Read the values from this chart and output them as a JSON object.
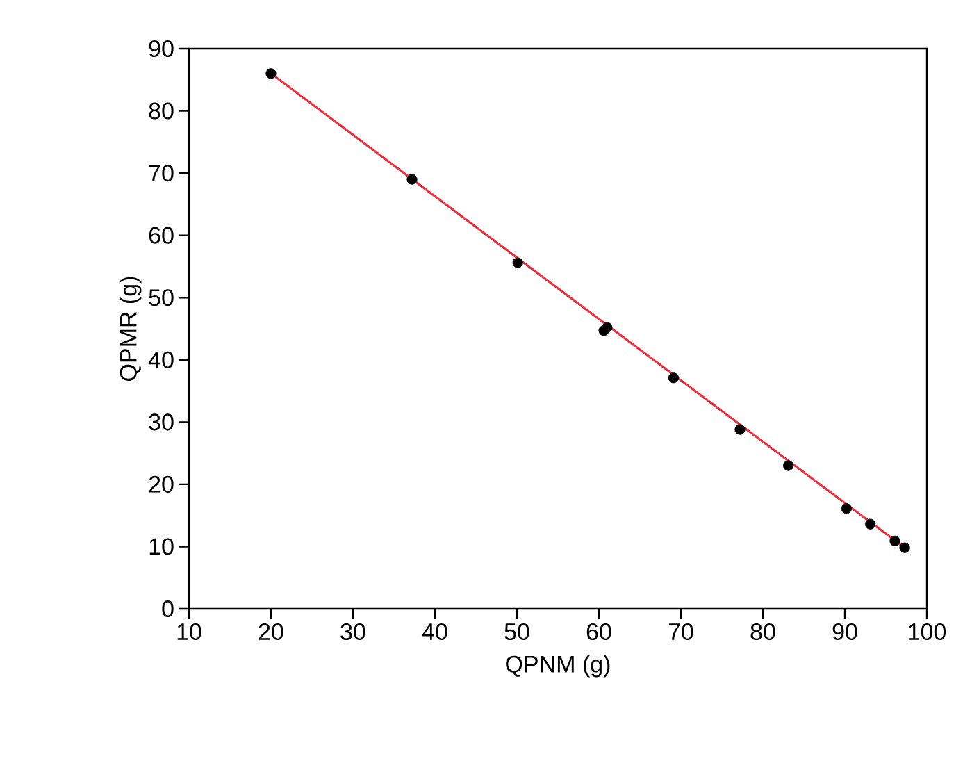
{
  "chart_data": {
    "type": "scatter",
    "xlabel": "QPNM (g)",
    "ylabel": "QPMR (g)",
    "xlim": [
      10,
      100
    ],
    "xticks": [
      10,
      20,
      30,
      40,
      50,
      60,
      70,
      80,
      90,
      100
    ],
    "ylim": [
      0,
      90
    ],
    "yticks": [
      0,
      10,
      20,
      30,
      40,
      50,
      60,
      70,
      80,
      90
    ],
    "marker": "circle",
    "series": [
      {
        "color": "#000000",
        "x": [
          20.0,
          37.2,
          50.1,
          60.6,
          61.0,
          69.1,
          77.2,
          83.1,
          90.2,
          93.1,
          96.1,
          97.3
        ],
        "values": [
          86.0,
          69.0,
          55.6,
          44.7,
          45.2,
          37.1,
          28.8,
          23.0,
          16.1,
          13.6,
          10.9,
          9.8
        ]
      },
      {
        "type": "line",
        "marker": "none",
        "color": "#e8303f",
        "x": [
          20.0,
          97.3
        ],
        "values": [
          86.0,
          9.8
        ]
      }
    ]
  }
}
